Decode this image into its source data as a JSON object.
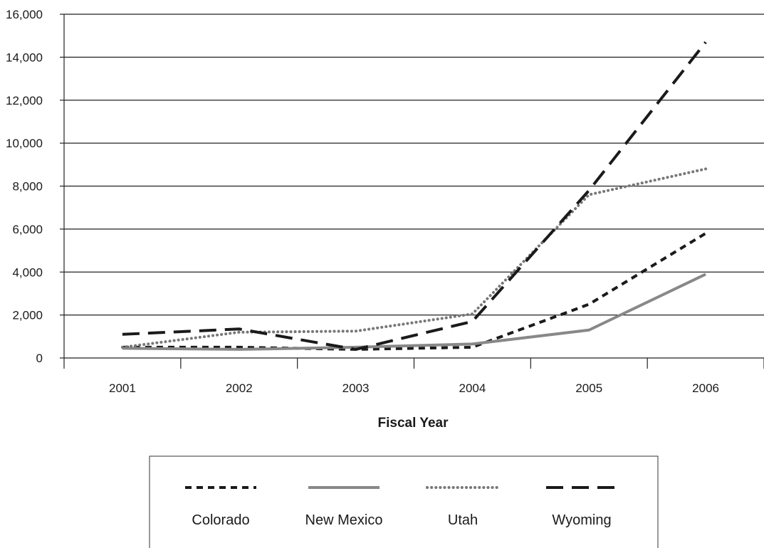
{
  "chart_data": {
    "type": "line",
    "title": "",
    "xlabel": "Fiscal Year",
    "ylabel": "",
    "categories": [
      "2001",
      "2002",
      "2003",
      "2004",
      "2005",
      "2006"
    ],
    "ylim": [
      0,
      16000
    ],
    "yticks": [
      0,
      2000,
      4000,
      6000,
      8000,
      10000,
      12000,
      14000,
      16000
    ],
    "ytick_labels": [
      "0",
      "2,000",
      "4,000",
      "6,000",
      "8,000",
      "10,000",
      "12,000",
      "14,000",
      "16,000"
    ],
    "grid": "horizontal",
    "legend_position": "bottom",
    "series": [
      {
        "name": "Colorado",
        "values": [
          500,
          500,
          400,
          500,
          2500,
          5800
        ],
        "color": "#1a1a1a",
        "style": "short-dash"
      },
      {
        "name": "New Mexico",
        "values": [
          450,
          400,
          500,
          650,
          1300,
          3900
        ],
        "color": "#888888",
        "style": "solid"
      },
      {
        "name": "Utah",
        "values": [
          500,
          1200,
          1250,
          2050,
          7600,
          8800
        ],
        "color": "#777777",
        "style": "dotted"
      },
      {
        "name": "Wyoming",
        "values": [
          1100,
          1350,
          400,
          1700,
          7800,
          14700
        ],
        "color": "#1a1a1a",
        "style": "long-dash"
      }
    ]
  }
}
